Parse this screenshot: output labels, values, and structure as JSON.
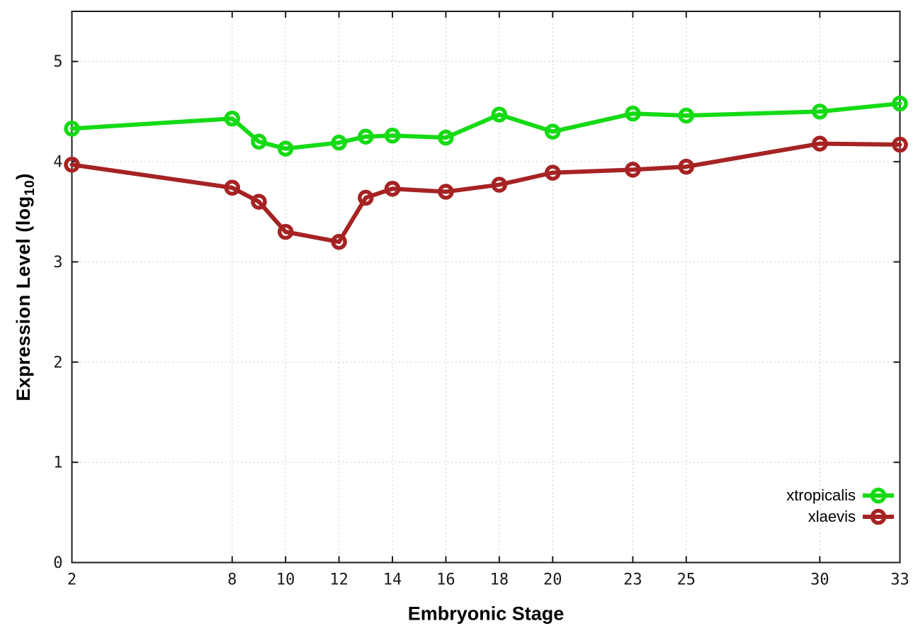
{
  "chart_data": {
    "type": "line",
    "title": "",
    "xlabel": "Embryonic Stage",
    "ylabel": "Expression Level (log10)",
    "ylabel_parts": {
      "prefix": "Expression Level (log",
      "sub": "10",
      "suffix": ")"
    },
    "x": [
      2,
      8,
      9,
      10,
      12,
      13,
      14,
      16,
      18,
      20,
      23,
      25,
      30,
      33
    ],
    "series": [
      {
        "name": "xtropicalis",
        "color": "#15da15",
        "values": [
          4.33,
          4.43,
          4.2,
          4.13,
          4.19,
          4.25,
          4.26,
          4.24,
          4.47,
          4.3,
          4.48,
          4.46,
          4.5,
          4.58
        ]
      },
      {
        "name": "xlaevis",
        "color": "#a62323",
        "values": [
          3.97,
          3.74,
          3.6,
          3.3,
          3.2,
          3.64,
          3.73,
          3.7,
          3.77,
          3.89,
          3.92,
          3.95,
          4.18,
          4.17
        ]
      }
    ],
    "xticks": [
      2,
      8,
      10,
      12,
      14,
      16,
      18,
      20,
      23,
      25,
      30,
      33
    ],
    "yticks": [
      0,
      1,
      2,
      3,
      4,
      5
    ],
    "xlim": [
      2,
      33
    ],
    "ylim": [
      0,
      5.5
    ],
    "grid": "dotted",
    "legend_position": "bottom-right",
    "colors": {
      "axis": "#1c1c1c",
      "grid": "#bbbbbb",
      "tick_label": "#1a1a1a",
      "background": "#ffffff"
    }
  }
}
